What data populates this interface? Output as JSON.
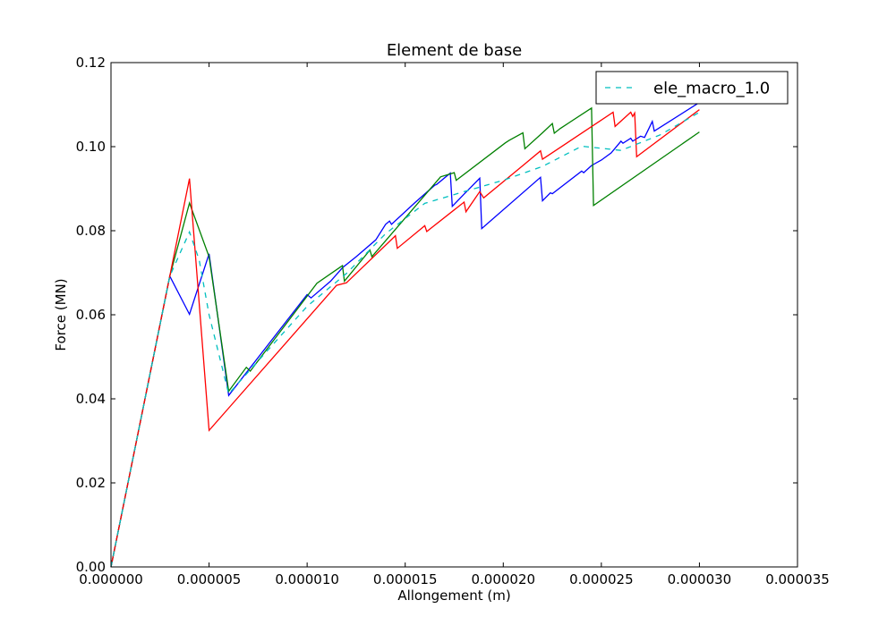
{
  "chart_data": {
    "type": "line",
    "title": "Element de base",
    "xlabel": "Allongement (m)",
    "ylabel": "Force (MN)",
    "xlim": [
      0,
      3.5e-05
    ],
    "ylim": [
      0,
      0.12
    ],
    "grid": false,
    "legend_position": "upper-right",
    "x_ticks": [
      0,
      5e-06,
      1e-05,
      1.5e-05,
      2e-05,
      2.5e-05,
      3e-05,
      3.5e-05
    ],
    "x_tick_labels": [
      "0.000000",
      "0.000005",
      "0.000010",
      "0.000015",
      "0.000020",
      "0.000025",
      "0.000030",
      "0.000035"
    ],
    "y_ticks": [
      0,
      0.02,
      0.04,
      0.06,
      0.08,
      0.1,
      0.12
    ],
    "y_tick_labels": [
      "0.00",
      "0.02",
      "0.04",
      "0.06",
      "0.08",
      "0.10",
      "0.12"
    ],
    "series": [
      {
        "color": "#0000ff",
        "dashed": false,
        "x": [
          0,
          3e-06,
          4e-06,
          5e-06,
          6e-06,
          1e-05,
          1.02e-05,
          1.12e-05,
          1.18e-05,
          1.25e-05,
          1.35e-05,
          1.4e-05,
          1.42e-05,
          1.43e-05,
          1.55e-05,
          1.65e-05,
          1.66e-05,
          1.73e-05,
          1.74e-05,
          1.8e-05,
          1.88e-05,
          1.89e-05,
          2.19e-05,
          2.2e-05,
          2.24e-05,
          2.25e-05,
          2.4e-05,
          2.41e-05,
          2.45e-05,
          2.5e-05,
          2.55e-05,
          2.6e-05,
          2.61e-05,
          2.65e-05,
          2.66e-05,
          2.7e-05,
          2.72e-05,
          2.76e-05,
          2.77e-05,
          3e-05
        ],
        "y": [
          0,
          0.0692,
          0.0601,
          0.0745,
          0.0408,
          0.0648,
          0.064,
          0.068,
          0.0712,
          0.0738,
          0.0778,
          0.0815,
          0.0823,
          0.0815,
          0.0867,
          0.0908,
          0.091,
          0.0937,
          0.0858,
          0.0887,
          0.0925,
          0.0805,
          0.0927,
          0.0871,
          0.089,
          0.0888,
          0.0942,
          0.0938,
          0.0955,
          0.0968,
          0.0985,
          0.1013,
          0.1008,
          0.102,
          0.1013,
          0.1025,
          0.1022,
          0.106,
          0.1037,
          0.1105
        ]
      },
      {
        "color": "#008000",
        "dashed": false,
        "x": [
          0,
          3e-06,
          4e-06,
          5e-06,
          6e-06,
          6.9e-06,
          7.1e-06,
          1.05e-05,
          1.18e-05,
          1.19e-05,
          1.32e-05,
          1.33e-05,
          1.68e-05,
          1.75e-05,
          1.76e-05,
          2.01e-05,
          2.03e-05,
          2.1e-05,
          2.11e-05,
          2.2e-05,
          2.25e-05,
          2.26e-05,
          2.29e-05,
          2.45e-05,
          2.46e-05,
          3e-05
        ],
        "y": [
          0,
          0.0692,
          0.0866,
          0.0738,
          0.0418,
          0.0475,
          0.0466,
          0.0675,
          0.0717,
          0.068,
          0.0754,
          0.0738,
          0.0928,
          0.0938,
          0.092,
          0.1009,
          0.1015,
          0.1033,
          0.0995,
          0.1033,
          0.1055,
          0.1032,
          0.1043,
          0.1092,
          0.086,
          0.1035
        ]
      },
      {
        "color": "#ff0000",
        "dashed": false,
        "x": [
          0,
          3e-06,
          4e-06,
          5e-06,
          1.15e-05,
          1.2e-05,
          1.45e-05,
          1.46e-05,
          1.6e-05,
          1.61e-05,
          1.8e-05,
          1.81e-05,
          1.88e-05,
          1.9e-05,
          2.1e-05,
          2.19e-05,
          2.2e-05,
          2.56e-05,
          2.57e-05,
          2.65e-05,
          2.66e-05,
          2.67e-05,
          2.68e-05,
          3e-05
        ],
        "y": [
          0,
          0.0692,
          0.0924,
          0.0325,
          0.067,
          0.0676,
          0.0788,
          0.0758,
          0.0812,
          0.0798,
          0.0868,
          0.0845,
          0.0893,
          0.0878,
          0.0955,
          0.099,
          0.097,
          0.1082,
          0.1048,
          0.1082,
          0.1072,
          0.108,
          0.0976,
          0.1088
        ]
      },
      {
        "name": "ele_macro_1.0",
        "color": "#00bfbf",
        "dashed": true,
        "x": [
          0,
          3e-06,
          4e-06,
          4.5e-06,
          5e-06,
          6e-06,
          1e-05,
          1.2e-05,
          1.4e-05,
          1.6e-05,
          1.8e-05,
          2e-05,
          2.2e-05,
          2.4e-05,
          2.6e-05,
          2.8e-05,
          3e-05
        ],
        "y": [
          0,
          0.0692,
          0.0797,
          0.073,
          0.06,
          0.0412,
          0.062,
          0.0698,
          0.0793,
          0.0865,
          0.0893,
          0.092,
          0.0953,
          0.1001,
          0.0991,
          0.1028,
          0.1082
        ]
      }
    ]
  }
}
